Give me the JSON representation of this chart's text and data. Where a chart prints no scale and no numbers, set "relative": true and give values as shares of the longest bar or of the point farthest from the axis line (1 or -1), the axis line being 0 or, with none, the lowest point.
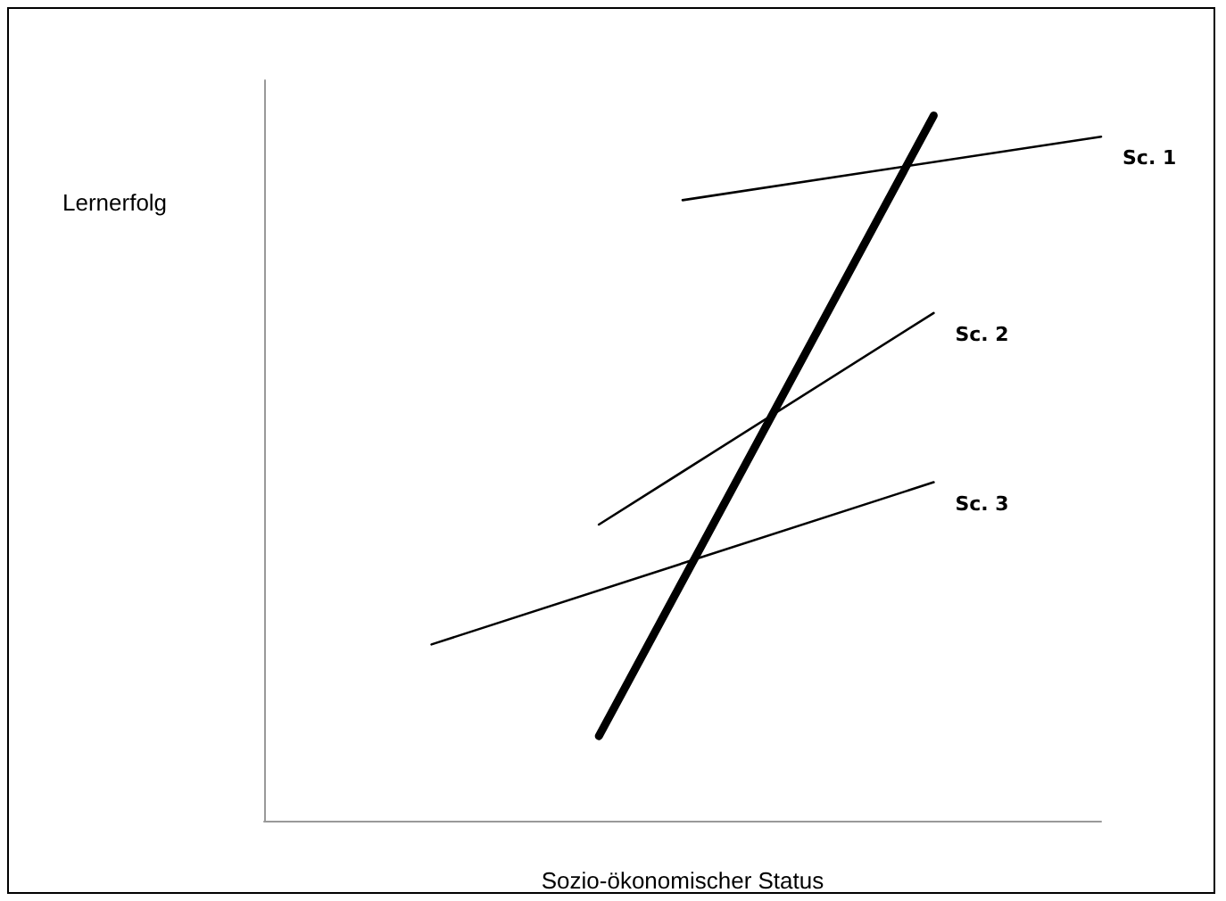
{
  "chart_data": {
    "type": "line",
    "relative": true,
    "xlabel": "Sozio-ökonomischer Status",
    "ylabel": "Lernerfolg",
    "categories": [
      null,
      null,
      null,
      null,
      null,
      null,
      null,
      null,
      null,
      null,
      null,
      null,
      null,
      null,
      null,
      null,
      null,
      null,
      null,
      null,
      null
    ],
    "series": [
      {
        "color": "#000000",
        "values": [
          null,
          null,
          null,
          null,
          null,
          null,
          null,
          null,
          0.12,
          null,
          null,
          null,
          null,
          null,
          null,
          null,
          1,
          null,
          null,
          null,
          null
        ]
      },
      {
        "name": "Sc. 1",
        "color": "#000000",
        "values": [
          null,
          null,
          null,
          null,
          null,
          null,
          null,
          null,
          null,
          null,
          0.88,
          null,
          null,
          null,
          null,
          null,
          null,
          null,
          null,
          null,
          0.97
        ]
      },
      {
        "name": "Sc. 2",
        "color": "#000000",
        "values": [
          null,
          null,
          null,
          null,
          null,
          null,
          null,
          null,
          0.42,
          null,
          null,
          null,
          null,
          null,
          null,
          null,
          0.72,
          null,
          null,
          null,
          null
        ]
      },
      {
        "name": "Sc. 3",
        "color": "#000000",
        "values": [
          null,
          null,
          null,
          null,
          0.25,
          null,
          null,
          null,
          null,
          null,
          null,
          null,
          null,
          null,
          null,
          null,
          0.48,
          null,
          null,
          null,
          null
        ]
      }
    ],
    "legend": false,
    "grid": false,
    "marker": "none"
  }
}
